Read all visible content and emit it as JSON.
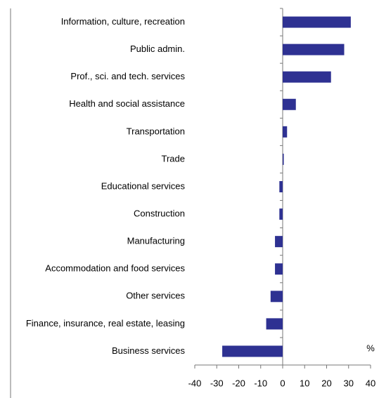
{
  "chart_data": {
    "type": "hbar",
    "categories": [
      "Information, culture, recreation",
      "Public admin.",
      "Prof., sci. and tech. services",
      "Health and social assistance",
      "Transportation",
      "Trade",
      "Educational services",
      "Construction",
      "Manufacturing",
      "Accommodation and food services",
      "Other services",
      "Finance, insurance, real estate, leasing",
      "Business services"
    ],
    "values": [
      31,
      28,
      22,
      6,
      2,
      0.5,
      -1.5,
      -1.5,
      -3.5,
      -3.5,
      -5.5,
      -7.5,
      -27.5
    ],
    "color": "#2e3192",
    "xlim": [
      -40,
      40
    ],
    "xticks": [
      -40,
      -30,
      -20,
      -10,
      0,
      10,
      20,
      30,
      40
    ],
    "x_unit_label": "%"
  }
}
